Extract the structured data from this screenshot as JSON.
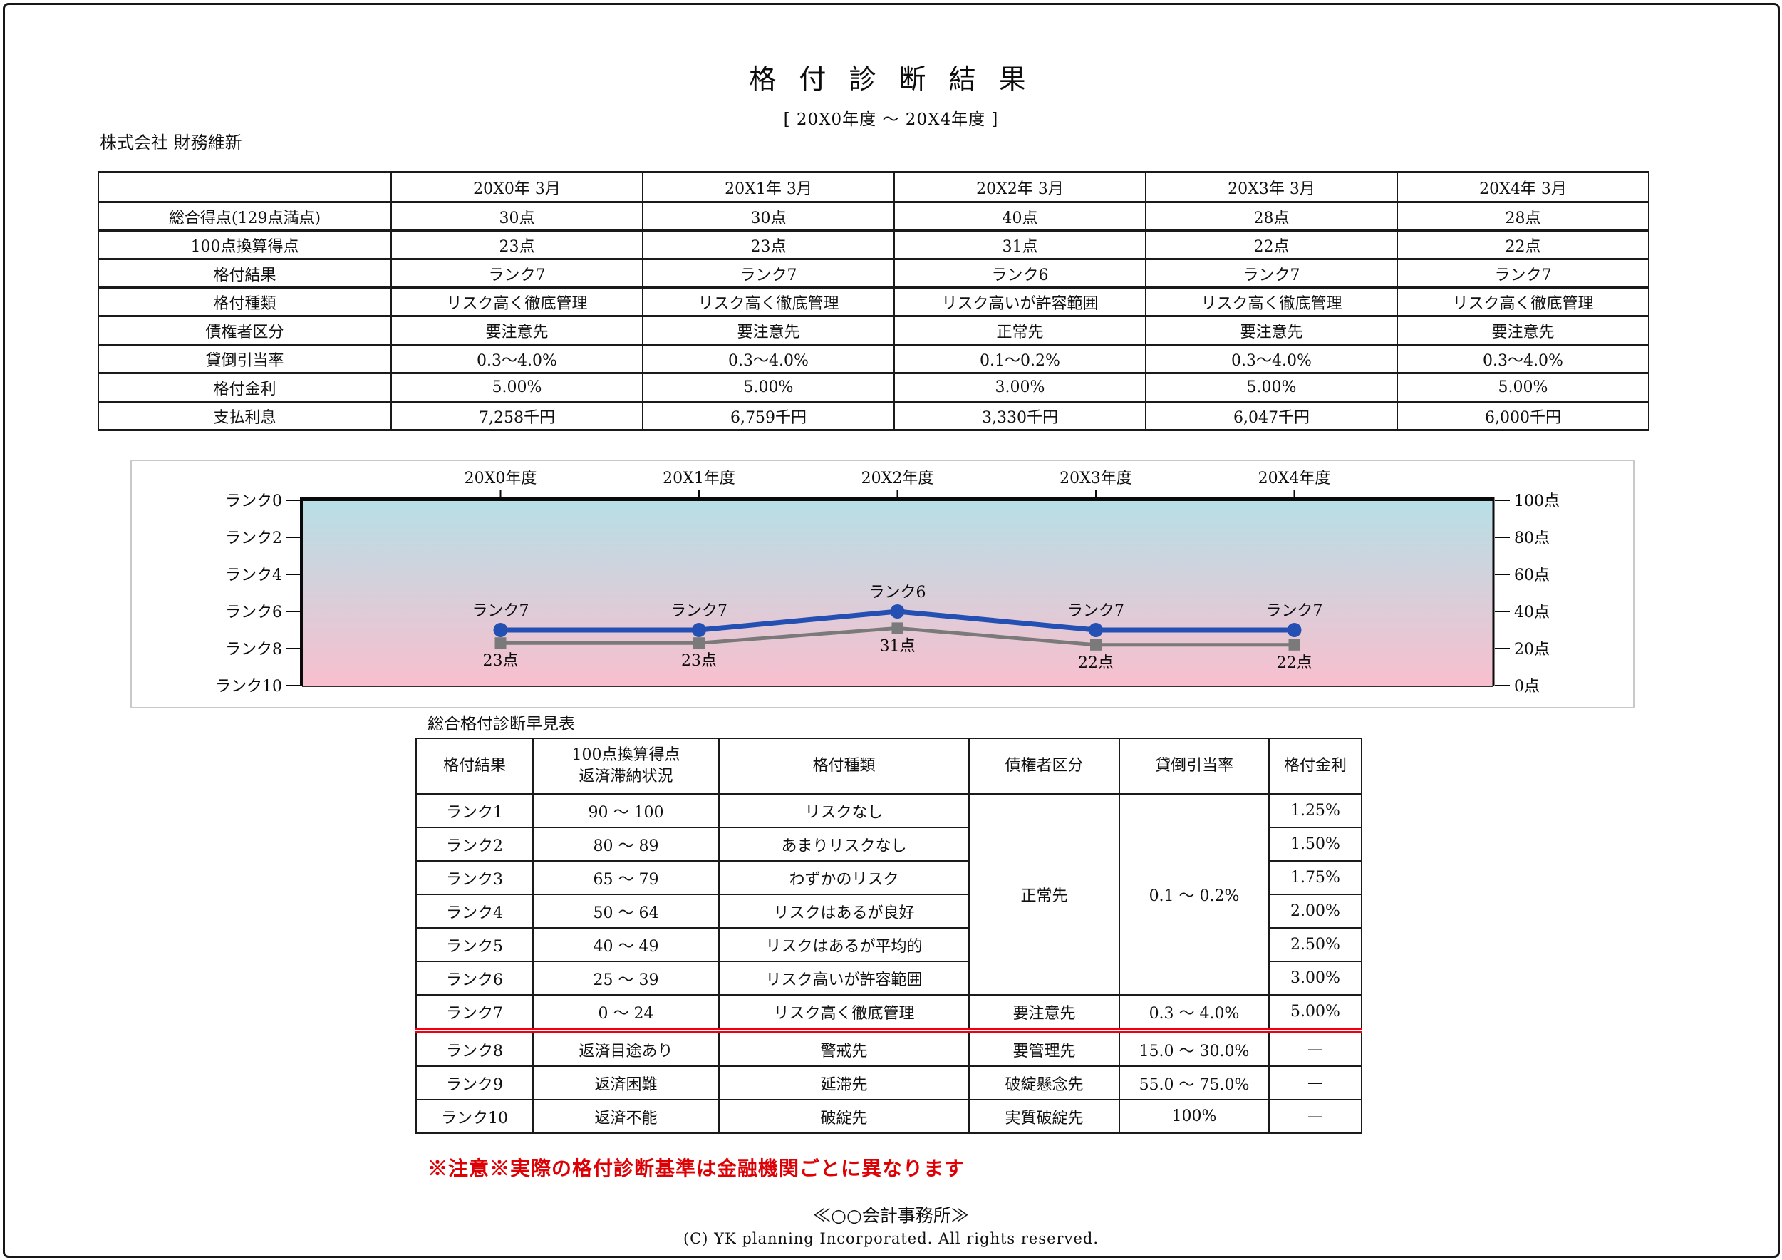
{
  "page": {
    "title": "格 付 診 断 結 果",
    "subtitle": "[ 20X0年度 ～ 20X4年度 ]",
    "company": "株式会社 財務維新",
    "note": "※注意※実際の格付診断基準は金融機関ごとに異なります",
    "footer_office": "≪○○会計事務所≫",
    "footer_copyright": "(C) YK planning Incorporated. All rights reserved."
  },
  "summary_table": {
    "columns": [
      "20X0年 3月",
      "20X1年 3月",
      "20X2年 3月",
      "20X3年 3月",
      "20X4年 3月"
    ],
    "rows": [
      {
        "label": "総合得点(129点満点)",
        "values": [
          "30点",
          "30点",
          "40点",
          "28点",
          "28点"
        ]
      },
      {
        "label": "100点換算得点",
        "values": [
          "23点",
          "23点",
          "31点",
          "22点",
          "22点"
        ]
      },
      {
        "label": "格付結果",
        "values": [
          "ランク7",
          "ランク7",
          "ランク6",
          "ランク7",
          "ランク7"
        ]
      },
      {
        "label": "格付種類",
        "values": [
          "リスク高く徹底管理",
          "リスク高く徹底管理",
          "リスク高いが許容範囲",
          "リスク高く徹底管理",
          "リスク高く徹底管理"
        ]
      },
      {
        "label": "債権者区分",
        "values": [
          "要注意先",
          "要注意先",
          "正常先",
          "要注意先",
          "要注意先"
        ]
      },
      {
        "label": "貸倒引当率",
        "values": [
          "0.3～4.0%",
          "0.3～4.0%",
          "0.1～0.2%",
          "0.3～4.0%",
          "0.3～4.0%"
        ]
      },
      {
        "label": "格付金利",
        "values": [
          "5.00%",
          "5.00%",
          "3.00%",
          "5.00%",
          "5.00%"
        ]
      },
      {
        "label": "支払利息",
        "values": [
          "7,258千円",
          "6,759千円",
          "3,330千円",
          "6,047千円",
          "6,000千円"
        ]
      }
    ]
  },
  "chart_data": {
    "type": "line",
    "categories": [
      "20X0年度",
      "20X1年度",
      "20X2年度",
      "20X3年度",
      "20X4年度"
    ],
    "series": [
      {
        "name": "100点換算得点",
        "axis": "right",
        "values": [
          23,
          23,
          31,
          22,
          22
        ],
        "labels": [
          "23点",
          "23点",
          "31点",
          "22点",
          "22点"
        ],
        "color": "#7a7a7a",
        "marker": "square"
      },
      {
        "name": "格付結果",
        "axis": "left",
        "values": [
          7,
          7,
          6,
          7,
          7
        ],
        "labels": [
          "ランク7",
          "ランク7",
          "ランク6",
          "ランク7",
          "ランク7"
        ],
        "color": "#2450b4",
        "marker": "circle"
      }
    ],
    "left_axis": {
      "title": "ランク",
      "tick_labels": [
        "ランク0",
        "ランク2",
        "ランク4",
        "ランク6",
        "ランク8",
        "ランク10"
      ],
      "range": [
        0,
        10
      ],
      "inverted": true
    },
    "right_axis": {
      "title": "点",
      "tick_labels": [
        "100点",
        "80点",
        "60点",
        "40点",
        "20点",
        "0点"
      ],
      "range": [
        0,
        100
      ]
    },
    "grid": false,
    "legend": "none",
    "background_gradient": [
      "#b7dfe6",
      "#f8bfce"
    ]
  },
  "lookup_table": {
    "title": "総合格付診断早見表",
    "headers": [
      "格付結果",
      "100点換算得点\n返済滞納状況",
      "格付種類",
      "債権者区分",
      "貸倒引当率",
      "格付金利"
    ],
    "rows": [
      [
        "ランク1",
        "90 ～ 100",
        "リスクなし",
        {
          "text": "正常先",
          "rowspan": 6
        },
        {
          "text": "0.1 ～ 0.2%",
          "rowspan": 6
        },
        "1.25%"
      ],
      [
        "ランク2",
        "80 ～ 89",
        "あまりリスクなし",
        null,
        null,
        "1.50%"
      ],
      [
        "ランク3",
        "65 ～ 79",
        "わずかのリスク",
        null,
        null,
        "1.75%"
      ],
      [
        "ランク4",
        "50 ～ 64",
        "リスクはあるが良好",
        null,
        null,
        "2.00%"
      ],
      [
        "ランク5",
        "40 ～ 49",
        "リスクはあるが平均的",
        null,
        null,
        "2.50%"
      ],
      [
        "ランク6",
        "25 ～ 39",
        "リスク高いが許容範囲",
        null,
        null,
        "3.00%"
      ],
      [
        "ランク7",
        "0 ～ 24",
        "リスク高く徹底管理",
        "要注意先",
        "0.3 ～ 4.0%",
        "5.00%"
      ],
      [
        "ランク8",
        "返済目途あり",
        "警戒先",
        "要管理先",
        "15.0 ～ 30.0%",
        "—"
      ],
      [
        "ランク9",
        "返済困難",
        "延滞先",
        "破綻懸念先",
        "55.0 ～ 75.0%",
        "—"
      ],
      [
        "ランク10",
        "返済不能",
        "破綻先",
        "実質破綻先",
        "100%",
        "—"
      ]
    ],
    "divider_after_row_index": 6
  }
}
